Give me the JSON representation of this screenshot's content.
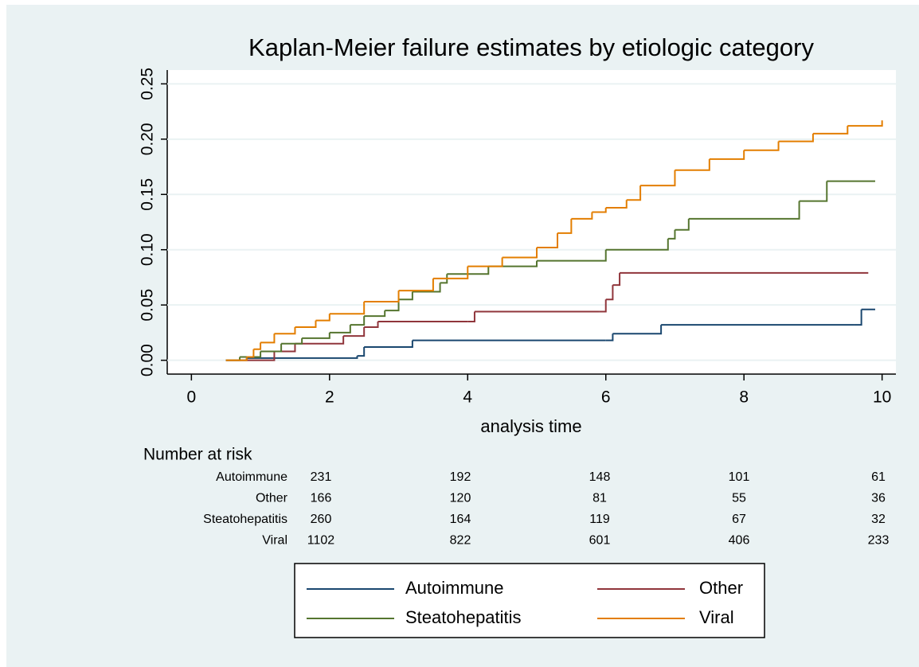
{
  "chart_data": {
    "type": "line",
    "step": "post",
    "title": "Kaplan-Meier failure estimates by etiologic category",
    "x_label": "analysis time",
    "xlim": [
      -0.35,
      10.2
    ],
    "ylim": [
      -0.0125,
      0.2625
    ],
    "xticks": [
      0,
      2,
      4,
      6,
      8,
      10
    ],
    "yticks": [
      {
        "value": 0,
        "label": "0.00"
      },
      0.05,
      {
        "value": 0.1,
        "label": "0.10"
      },
      0.15,
      {
        "value": 0.2,
        "label": "0.20"
      },
      0.25
    ],
    "grid": true,
    "series": [
      {
        "name": "Autoimmune",
        "color": "#1a476f",
        "x": [
          0.5,
          0.8,
          2.4,
          2.5,
          3.2,
          6.0,
          6.1,
          6.8,
          9.6,
          9.7,
          9.9
        ],
        "values": [
          0,
          0.002,
          0.004,
          0.012,
          0.018,
          0.018,
          0.024,
          0.032,
          0.032,
          0.046,
          0.046
        ]
      },
      {
        "name": "Other",
        "color": "#90353b",
        "x": [
          0.5,
          1.2,
          1.5,
          2.2,
          2.5,
          2.7,
          4.0,
          4.1,
          5.9,
          6.0,
          6.1,
          6.2,
          9.8
        ],
        "values": [
          0,
          0.008,
          0.015,
          0.022,
          0.03,
          0.035,
          0.035,
          0.044,
          0.044,
          0.055,
          0.068,
          0.079,
          0.079
        ]
      },
      {
        "name": "Steatohepatitis",
        "color": "#55752f",
        "x": [
          0.5,
          0.7,
          1.0,
          1.3,
          1.6,
          2.0,
          2.3,
          2.5,
          2.8,
          3.0,
          3.2,
          3.6,
          3.7,
          4.3,
          5.0,
          6.0,
          6.9,
          7.0,
          7.2,
          8.8,
          9.2,
          9.9
        ],
        "values": [
          0,
          0.003,
          0.008,
          0.015,
          0.02,
          0.025,
          0.032,
          0.04,
          0.045,
          0.055,
          0.062,
          0.07,
          0.078,
          0.085,
          0.09,
          0.1,
          0.11,
          0.118,
          0.128,
          0.144,
          0.162,
          0.162
        ]
      },
      {
        "name": "Viral",
        "color": "#e37e00",
        "x": [
          0.5,
          0.8,
          0.9,
          1.0,
          1.2,
          1.5,
          1.8,
          2.0,
          2.5,
          3.0,
          3.5,
          4.0,
          4.5,
          5.0,
          5.3,
          5.5,
          5.8,
          6.0,
          6.3,
          6.5,
          7.0,
          7.5,
          8.0,
          8.5,
          9.0,
          9.5,
          10.0
        ],
        "values": [
          0,
          0.003,
          0.01,
          0.016,
          0.024,
          0.03,
          0.036,
          0.042,
          0.053,
          0.063,
          0.074,
          0.085,
          0.093,
          0.102,
          0.115,
          0.128,
          0.134,
          0.138,
          0.145,
          0.158,
          0.172,
          0.182,
          0.19,
          0.198,
          0.205,
          0.212,
          0.217
        ]
      }
    ],
    "risk_table": {
      "title": "Number at risk",
      "rows": [
        {
          "name": "Autoimmune",
          "values": [
            231,
            192,
            148,
            101,
            61
          ]
        },
        {
          "name": "Other",
          "values": [
            166,
            120,
            81,
            55,
            36
          ]
        },
        {
          "name": "Steatohepatitis",
          "values": [
            260,
            164,
            119,
            67,
            32
          ]
        },
        {
          "name": "Viral",
          "values": [
            1102,
            822,
            601,
            406,
            233
          ]
        }
      ]
    }
  }
}
